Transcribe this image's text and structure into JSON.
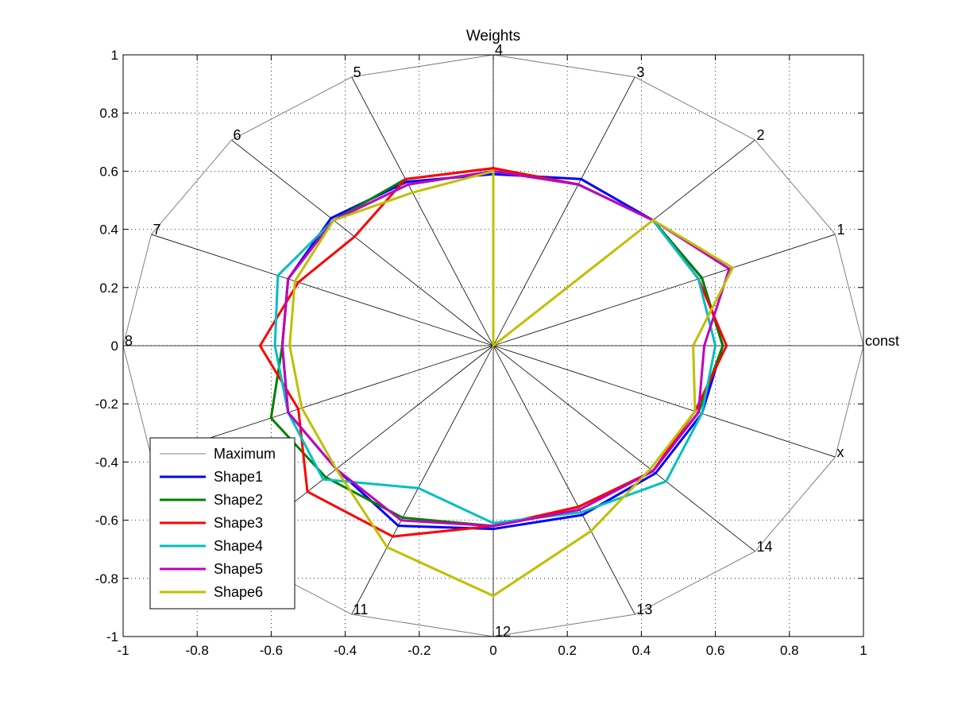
{
  "chart_data": {
    "type": "radar",
    "title": "Weights",
    "xlim": [
      -1,
      1
    ],
    "ylim": [
      -1,
      1
    ],
    "grid": true,
    "xticks": [
      "-1",
      "-0.8",
      "-0.6",
      "-0.4",
      "-0.2",
      "0",
      "0.2",
      "0.4",
      "0.6",
      "0.8",
      "1"
    ],
    "yticks": [
      "-1",
      "-0.8",
      "-0.6",
      "-0.4",
      "-0.2",
      "0",
      "0.2",
      "0.4",
      "0.6",
      "0.8",
      "1"
    ],
    "spokes": [
      "const",
      "1",
      "2",
      "3",
      "4",
      "5",
      "6",
      "7",
      "8",
      "",
      "",
      "11",
      "12",
      "13",
      "14",
      "x"
    ],
    "legend_position": "lower-left",
    "series": [
      {
        "name": "Maximum",
        "color": "#808080",
        "values": [
          1,
          1,
          1,
          1,
          1,
          1,
          1,
          1,
          1,
          1,
          1,
          1,
          1,
          1,
          1,
          1
        ]
      },
      {
        "name": "Shape1",
        "color": "#0000ff",
        "values": [
          0.62,
          0.61,
          0.61,
          0.62,
          0.59,
          0.61,
          0.62,
          0.6,
          0.57,
          0.6,
          0.6,
          0.67,
          0.63,
          0.63,
          0.62,
          0.61
        ]
      },
      {
        "name": "Shape2",
        "color": "#008000",
        "values": [
          0.62,
          0.61,
          0.61,
          0.6,
          0.61,
          0.62,
          0.61,
          0.6,
          0.57,
          0.65,
          0.64,
          0.64,
          0.62,
          0.6,
          0.61,
          0.6
        ]
      },
      {
        "name": "Shape3",
        "color": "#ff0000",
        "values": [
          0.63,
          0.6,
          0.61,
          0.6,
          0.61,
          0.62,
          0.53,
          0.57,
          0.63,
          0.57,
          0.71,
          0.71,
          0.62,
          0.6,
          0.61,
          0.59
        ]
      },
      {
        "name": "Shape4",
        "color": "#00bfbf",
        "values": [
          0.6,
          0.6,
          0.61,
          0.6,
          0.6,
          0.6,
          0.61,
          0.63,
          0.59,
          0.6,
          0.65,
          0.53,
          0.61,
          0.62,
          0.66,
          0.61
        ]
      },
      {
        "name": "Shape5",
        "color": "#bf00bf",
        "values": [
          0.57,
          0.69,
          0.61,
          0.6,
          0.6,
          0.6,
          0.61,
          0.6,
          0.57,
          0.6,
          0.6,
          0.65,
          0.62,
          0.61,
          0.61,
          0.6
        ]
      },
      {
        "name": "Shape6",
        "color": "#bfbf00",
        "values": [
          0.54,
          0.7,
          0.61,
          0.0,
          0.6,
          0.57,
          0.61,
          0.58,
          0.55,
          0.56,
          0.6,
          0.75,
          0.86,
          0.69,
          0.6,
          0.59
        ]
      }
    ]
  }
}
